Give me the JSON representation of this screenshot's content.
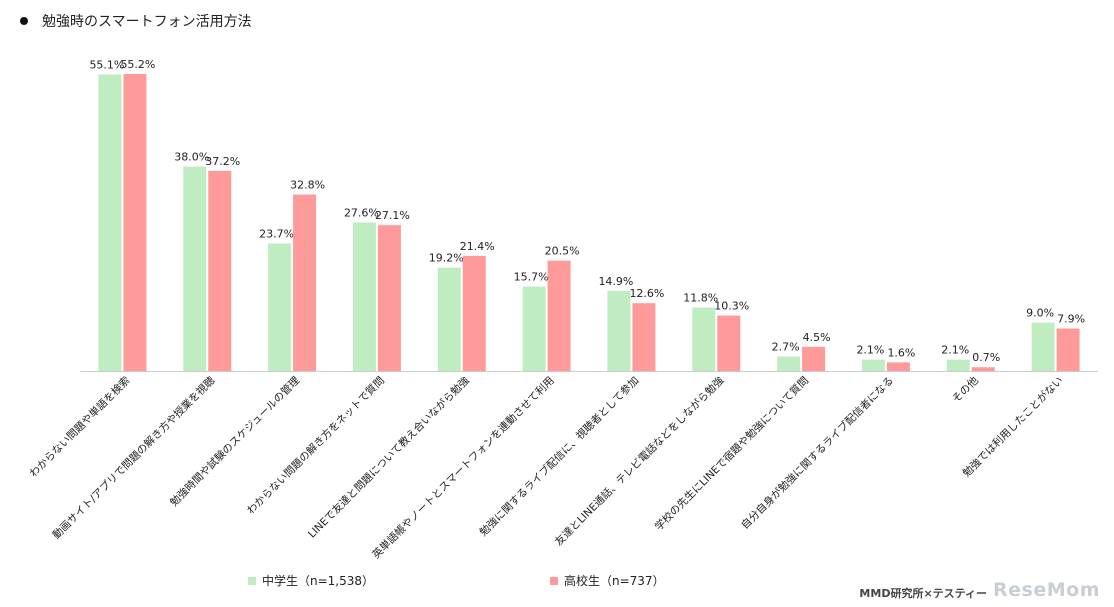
{
  "title": "勉強時のスマートフォン活用方法",
  "credit": "MMD研究所×テスティー",
  "logo": "ReseMom",
  "colors": {
    "junior": "#bfedc1",
    "senior": "#ff9a9a",
    "axis": "#cccccc",
    "text": "#222222"
  },
  "chart_data": {
    "type": "bar",
    "categories": [
      "わからない問題や単語を検索",
      "動画サイト/アプリで問題の解き方や授業を視聴",
      "勉強時間や試験のスケジュールの管理",
      "わからない問題の解き方をネットで質問",
      "LINEで友達と問題について教え合いながら勉強",
      "英単語帳やノートとスマートフォンを連動させて利用",
      "勉強に関するライブ配信に、視聴者として参加",
      "友達とLINE通話、テレビ電話などをしながら勉強",
      "学校の先生にLINEで宿題や勉強について質問",
      "自分自身が勉強に関するライブ配信者になる",
      "その他",
      "勉強では利用したことがない"
    ],
    "series": [
      {
        "name": "中学生（n=1,538）",
        "values": [
          55.1,
          38.0,
          23.7,
          27.6,
          19.2,
          15.7,
          14.9,
          11.8,
          2.7,
          2.1,
          2.1,
          9.0
        ],
        "labels": [
          "55.1%",
          "38.0%",
          "23.7%",
          "27.6%",
          "19.2%",
          "15.7%",
          "14.9%",
          "11.8%",
          "2.7%",
          "2.1%",
          "2.1%",
          "9.0%"
        ]
      },
      {
        "name": "高校生（n=737）",
        "values": [
          55.2,
          37.2,
          32.8,
          27.1,
          21.4,
          20.5,
          12.6,
          10.3,
          4.5,
          1.6,
          0.7,
          7.9
        ],
        "labels": [
          "55.2%",
          "37.2%",
          "32.8%",
          "27.1%",
          "21.4%",
          "20.5%",
          "12.6%",
          "10.3%",
          "4.5%",
          "1.6%",
          "0.7%",
          "7.9%"
        ]
      }
    ],
    "ylim": [
      0,
      55.2
    ],
    "grid": false,
    "legend": "bottom-center"
  }
}
